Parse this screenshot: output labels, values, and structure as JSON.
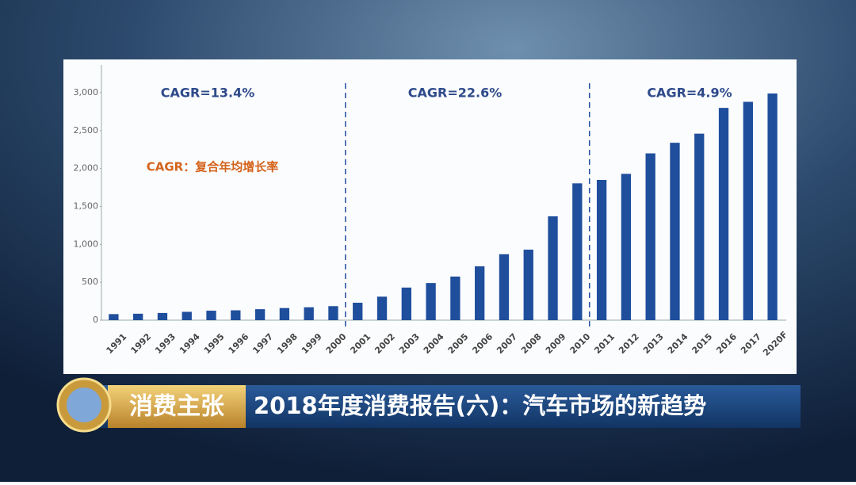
{
  "chart_data": {
    "type": "bar",
    "categories": [
      "1991",
      "1992",
      "1993",
      "1994",
      "1995",
      "1996",
      "1997",
      "1998",
      "1999",
      "2000",
      "2001",
      "2002",
      "2003",
      "2004",
      "2005",
      "2006",
      "2007",
      "2008",
      "2009",
      "2010",
      "2011",
      "2012",
      "2013",
      "2014",
      "2015",
      "2016",
      "2017",
      "2020F"
    ],
    "values": [
      80,
      85,
      95,
      110,
      125,
      130,
      145,
      160,
      170,
      185,
      230,
      310,
      430,
      490,
      575,
      710,
      870,
      930,
      1370,
      1805,
      1850,
      1930,
      2200,
      2340,
      2460,
      2800,
      2880,
      2990
    ],
    "color": "#1f4e9c",
    "ylim": [
      0,
      3000
    ],
    "yticks": [
      0,
      500,
      {
        "value": 1000,
        "label": "1,000"
      },
      {
        "value": 1500,
        "label": "1,500"
      },
      {
        "value": 2000,
        "label": "2,000"
      },
      {
        "value": 2500,
        "label": "2,500"
      },
      {
        "value": 3000,
        "label": "3,000"
      }
    ],
    "annotations": [
      "CAGR=13.4%",
      "CAGR=22.6%",
      "CAGR=4.9%",
      "CAGR：复合年均增长率"
    ]
  },
  "banner": {
    "program": "消费主张",
    "headline": "2018年度消费报告(六)：汽车市场的新趋势"
  }
}
